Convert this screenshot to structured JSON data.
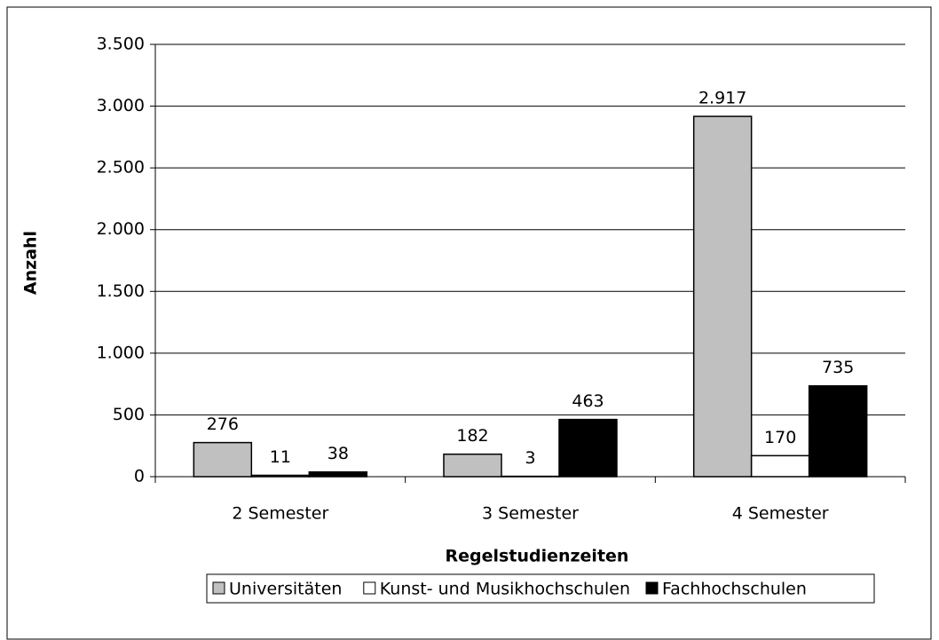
{
  "chart_data": {
    "type": "bar",
    "categories": [
      "2 Semester",
      "3 Semester",
      "4 Semester"
    ],
    "series": [
      {
        "name": "Universitäten",
        "color": "#c0c0c0",
        "values": [
          276,
          182,
          2917
        ],
        "value_labels": [
          "276",
          "182",
          "2.917"
        ]
      },
      {
        "name": "Kunst- und Musikhochschulen",
        "color": "#ffffff",
        "values": [
          11,
          3,
          170
        ],
        "value_labels": [
          "11",
          "3",
          "170"
        ]
      },
      {
        "name": "Fachhochschulen",
        "color": "#000000",
        "values": [
          38,
          463,
          735
        ],
        "value_labels": [
          "38",
          "463",
          "735"
        ]
      }
    ],
    "x_label": "Regelstudienzeiten",
    "y_label": "Anzahl",
    "ylim": [
      0,
      3500
    ],
    "yticks": [
      0,
      500,
      {
        "value": 1000,
        "label": "1.000"
      },
      {
        "value": 1500,
        "label": "1.500"
      },
      {
        "value": 2000,
        "label": "2.000"
      },
      {
        "value": 2500,
        "label": "2.500"
      },
      {
        "value": 3000,
        "label": "3.000"
      },
      {
        "value": 3500,
        "label": "3.500"
      }
    ],
    "grid": true,
    "legend": "bottom"
  }
}
